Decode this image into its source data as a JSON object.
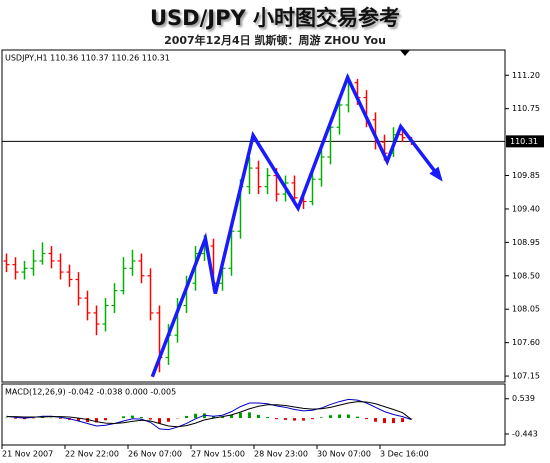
{
  "title": "USD/JPY 小时图交易参考",
  "subtitle": "2007年12月4日  凯斯顿：周游 ZHOU You",
  "chart_data": [
    {
      "type": "ohlc",
      "label": "USDJPY,H1  110.36 110.37 110.26 110.31",
      "categories": [
        "21 Nov 2007",
        null,
        null,
        null,
        null,
        null,
        null,
        "22 Nov 22:00",
        null,
        null,
        null,
        null,
        null,
        null,
        "26 Nov 07:00",
        null,
        null,
        null,
        null,
        null,
        null,
        "27 Nov 15:00",
        null,
        null,
        null,
        null,
        null,
        null,
        "28 Nov 23:00",
        null,
        null,
        null,
        null,
        null,
        null,
        "30 Nov 07:00",
        null,
        null,
        null,
        null,
        null,
        null,
        "3 Dec 16:00",
        null,
        null,
        null
      ],
      "open": [
        108.7,
        108.65,
        108.55,
        108.6,
        108.7,
        108.8,
        108.7,
        108.55,
        108.45,
        108.2,
        108.0,
        107.85,
        108.1,
        108.3,
        108.6,
        108.7,
        108.5,
        108.0,
        107.4,
        107.7,
        108.1,
        108.4,
        108.8,
        108.9,
        108.4,
        108.6,
        109.1,
        109.7,
        109.95,
        109.7,
        109.85,
        109.6,
        109.75,
        109.55,
        109.5,
        109.8,
        110.1,
        110.5,
        110.8,
        111.1,
        110.9,
        110.6,
        110.3,
        110.15,
        110.4,
        110.36
      ],
      "high": [
        108.8,
        108.75,
        108.7,
        108.85,
        108.95,
        108.9,
        108.8,
        108.65,
        108.55,
        108.3,
        108.1,
        108.2,
        108.4,
        108.75,
        108.85,
        108.8,
        108.6,
        108.1,
        107.85,
        108.2,
        108.5,
        108.9,
        109.05,
        109.0,
        108.7,
        109.2,
        109.8,
        110.1,
        110.05,
        109.95,
        109.95,
        109.85,
        109.85,
        109.65,
        109.9,
        110.2,
        110.6,
        110.9,
        111.2,
        111.15,
        111.0,
        110.7,
        110.4,
        110.5,
        110.5,
        110.37
      ],
      "low": [
        108.55,
        108.45,
        108.45,
        108.5,
        108.65,
        108.6,
        108.45,
        108.35,
        108.1,
        107.9,
        107.7,
        107.75,
        108.0,
        108.25,
        108.5,
        108.4,
        107.9,
        107.2,
        107.3,
        107.6,
        108.0,
        108.3,
        108.7,
        108.3,
        108.3,
        108.5,
        109.0,
        109.6,
        109.6,
        109.6,
        109.5,
        109.5,
        109.45,
        109.4,
        109.45,
        109.7,
        110.0,
        110.4,
        110.7,
        110.8,
        110.5,
        110.2,
        110.05,
        110.1,
        110.3,
        110.26
      ],
      "close": [
        108.65,
        108.55,
        108.6,
        108.7,
        108.8,
        108.7,
        108.55,
        108.45,
        108.2,
        108.0,
        107.85,
        108.1,
        108.3,
        108.6,
        108.7,
        108.5,
        108.0,
        107.4,
        107.7,
        108.1,
        108.4,
        108.8,
        108.9,
        108.4,
        108.6,
        109.1,
        109.7,
        109.95,
        109.7,
        109.85,
        109.6,
        109.75,
        109.55,
        109.5,
        109.8,
        110.1,
        110.5,
        110.8,
        111.1,
        110.9,
        110.6,
        110.3,
        110.15,
        110.4,
        110.36,
        110.31
      ],
      "up_color": "#00b000",
      "down_color": "#ff0000",
      "ylim": [
        107.07,
        111.54
      ],
      "yticks": [
        {
          "value": 111.2,
          "label": "111.20"
        },
        110.75,
        109.85,
        {
          "value": 109.4,
          "label": "109.40"
        },
        108.95,
        {
          "value": 108.5,
          "label": "108.50"
        },
        108.05,
        {
          "value": 107.6,
          "label": "107.60"
        },
        107.15
      ],
      "last_price": 110.31,
      "annotation": {
        "color": "#1a1aff",
        "x": [
          16.2,
          22.1,
          23.2,
          27.4,
          32.4,
          37.9,
          42.3,
          43.8,
          48.2
        ],
        "y": [
          107.14,
          109.0,
          108.26,
          110.39,
          109.41,
          111.17,
          110.04,
          110.51,
          109.81
        ]
      }
    },
    {
      "type": "macd",
      "label": "MACD(12,26,9) -0.042 -0.038 0.000 -0.005",
      "histogram": [
        0.01,
        -0.02,
        -0.03,
        -0.01,
        0.02,
        0.01,
        -0.02,
        -0.05,
        -0.08,
        -0.11,
        -0.12,
        -0.06,
        0.0,
        0.05,
        0.07,
        0.03,
        -0.04,
        -0.15,
        -0.1,
        -0.01,
        0.06,
        0.12,
        0.13,
        0.05,
        0.04,
        0.09,
        0.15,
        0.16,
        0.09,
        0.03,
        -0.03,
        -0.05,
        -0.07,
        -0.07,
        -0.03,
        0.02,
        0.08,
        0.1,
        0.1,
        0.04,
        -0.03,
        -0.1,
        -0.14,
        -0.14,
        -0.11,
        -0.005
      ],
      "macd": [
        0.05,
        0.02,
        0.0,
        0.02,
        0.05,
        0.05,
        0.02,
        -0.02,
        -0.08,
        -0.15,
        -0.22,
        -0.2,
        -0.15,
        -0.08,
        -0.02,
        -0.03,
        -0.12,
        -0.3,
        -0.32,
        -0.25,
        -0.15,
        -0.02,
        0.08,
        0.05,
        0.08,
        0.18,
        0.32,
        0.42,
        0.42,
        0.4,
        0.34,
        0.3,
        0.24,
        0.2,
        0.22,
        0.28,
        0.38,
        0.46,
        0.52,
        0.5,
        0.42,
        0.3,
        0.18,
        0.1,
        0.04,
        -0.042
      ],
      "signal": [
        0.04,
        0.04,
        0.03,
        0.03,
        0.03,
        0.04,
        0.04,
        0.03,
        0.0,
        -0.04,
        -0.1,
        -0.14,
        -0.15,
        -0.13,
        -0.09,
        -0.06,
        -0.08,
        -0.15,
        -0.22,
        -0.24,
        -0.21,
        -0.14,
        -0.05,
        0.0,
        0.04,
        0.09,
        0.17,
        0.26,
        0.33,
        0.37,
        0.37,
        0.35,
        0.31,
        0.27,
        0.25,
        0.26,
        0.3,
        0.36,
        0.42,
        0.46,
        0.45,
        0.4,
        0.32,
        0.24,
        0.15,
        -0.038
      ],
      "up_color": "#00a000",
      "down_color": "#e00000",
      "macd_color": "#0000c0",
      "signal_color": "#000000",
      "ylim": [
        -0.75,
        0.95
      ],
      "yticks": [
        0.539,
        -0.443
      ]
    }
  ]
}
